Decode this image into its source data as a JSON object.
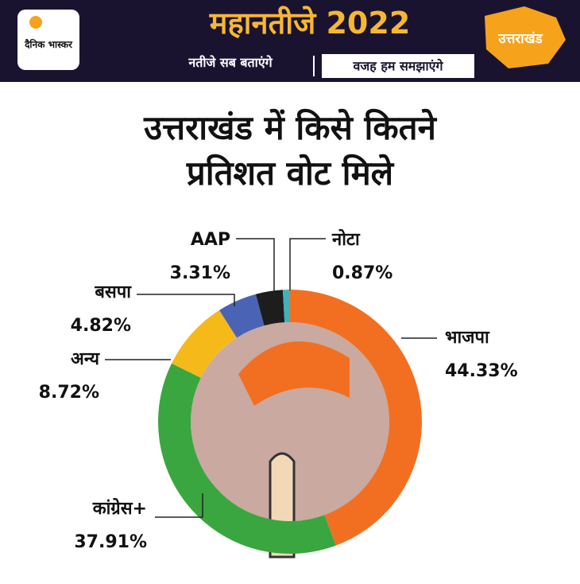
{
  "header": {
    "logo": "दैनिक भास्कर",
    "brand": "महानतीजे 2022",
    "tagline_left": "नतीजे सब बताएंगे",
    "tagline_right": "वजह हम समझाएंगे",
    "state": "उत्तराखंड"
  },
  "chart_data": {
    "type": "pie",
    "title_lines": [
      "उत्तराखंड में किसे कितने",
      "प्रतिशत वोट मिले"
    ],
    "categories": [
      "भाजपा",
      "कांग्रेस+",
      "अन्य",
      "बसपा",
      "AAP",
      "नोटा"
    ],
    "values": [
      44.33,
      37.91,
      8.72,
      4.82,
      3.31,
      0.87
    ],
    "value_labels": [
      "44.33%",
      "37.91%",
      "8.72%",
      "4.82%",
      "3.31%",
      "0.87%"
    ],
    "colors": [
      "#f26f21",
      "#3aa63f",
      "#f5b91a",
      "#4a63b5",
      "#1d1d1d",
      "#3fb2bd"
    ]
  }
}
